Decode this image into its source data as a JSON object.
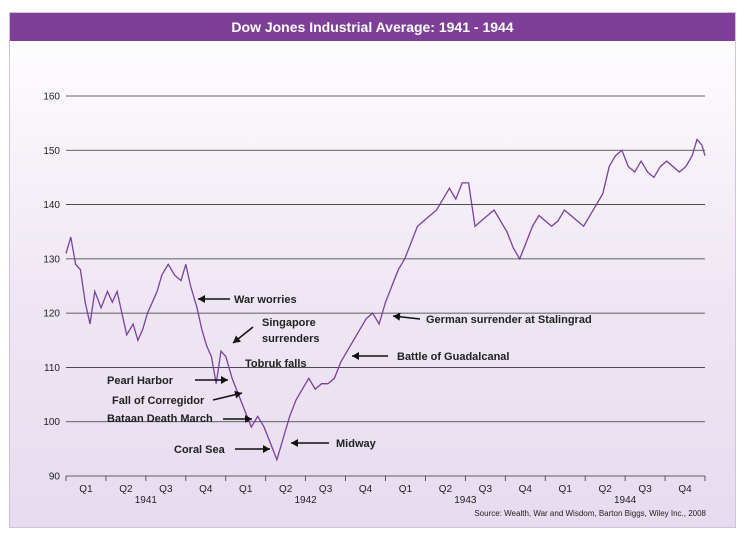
{
  "title": "Dow Jones Industrial Average: 1941 - 1944",
  "source": "Source: Wealth, War and Wisdom, Barton Biggs, Wiley Inc., 2008",
  "colors": {
    "header": "#7f3f98",
    "line": "#7b3f9e",
    "grid": "#333333"
  },
  "chart_data": {
    "type": "line",
    "title": "Dow Jones Industrial Average: 1941 - 1944",
    "xlabel": "",
    "ylabel": "",
    "ylim": [
      90,
      160
    ],
    "yticks": [
      90,
      100,
      110,
      120,
      130,
      140,
      150,
      160
    ],
    "grid": "horizontal",
    "x_quarters": [
      "Q1",
      "Q2",
      "Q3",
      "Q4",
      "Q1",
      "Q2",
      "Q3",
      "Q4",
      "Q1",
      "Q2",
      "Q3",
      "Q4",
      "Q1",
      "Q2",
      "Q3",
      "Q4"
    ],
    "x_years": [
      "1941",
      "1942",
      "1943",
      "1944"
    ],
    "x_range": [
      1941.0,
      1945.0
    ],
    "series": [
      {
        "values": [
          [
            1941.0,
            131
          ],
          [
            1941.03,
            134
          ],
          [
            1941.06,
            129
          ],
          [
            1941.09,
            128
          ],
          [
            1941.12,
            122
          ],
          [
            1941.15,
            118
          ],
          [
            1941.18,
            124
          ],
          [
            1941.22,
            121
          ],
          [
            1941.26,
            124
          ],
          [
            1941.29,
            122
          ],
          [
            1941.32,
            124
          ],
          [
            1941.35,
            120
          ],
          [
            1941.38,
            116
          ],
          [
            1941.42,
            118
          ],
          [
            1941.45,
            115
          ],
          [
            1941.48,
            117
          ],
          [
            1941.51,
            120
          ],
          [
            1941.54,
            122
          ],
          [
            1941.57,
            124
          ],
          [
            1941.6,
            127
          ],
          [
            1941.64,
            129
          ],
          [
            1941.68,
            127
          ],
          [
            1941.72,
            126
          ],
          [
            1941.75,
            129
          ],
          [
            1941.78,
            125
          ],
          [
            1941.82,
            121
          ],
          [
            1941.85,
            117
          ],
          [
            1941.88,
            114
          ],
          [
            1941.91,
            112
          ],
          [
            1941.94,
            107
          ],
          [
            1941.97,
            113
          ],
          [
            1942.0,
            112
          ],
          [
            1942.04,
            108
          ],
          [
            1942.08,
            105
          ],
          [
            1942.12,
            102
          ],
          [
            1942.16,
            99
          ],
          [
            1942.2,
            101
          ],
          [
            1942.24,
            99
          ],
          [
            1942.28,
            96
          ],
          [
            1942.32,
            93
          ],
          [
            1942.36,
            97
          ],
          [
            1942.4,
            101
          ],
          [
            1942.44,
            104
          ],
          [
            1942.48,
            106
          ],
          [
            1942.52,
            108
          ],
          [
            1942.56,
            106
          ],
          [
            1942.6,
            107
          ],
          [
            1942.64,
            107
          ],
          [
            1942.68,
            108
          ],
          [
            1942.72,
            111
          ],
          [
            1942.76,
            113
          ],
          [
            1942.8,
            115
          ],
          [
            1942.84,
            117
          ],
          [
            1942.88,
            119
          ],
          [
            1942.92,
            120
          ],
          [
            1942.96,
            118
          ],
          [
            1943.0,
            122
          ],
          [
            1943.04,
            125
          ],
          [
            1943.08,
            128
          ],
          [
            1943.12,
            130
          ],
          [
            1943.16,
            133
          ],
          [
            1943.2,
            136
          ],
          [
            1943.24,
            137
          ],
          [
            1943.28,
            138
          ],
          [
            1943.32,
            139
          ],
          [
            1943.36,
            141
          ],
          [
            1943.4,
            143
          ],
          [
            1943.44,
            141
          ],
          [
            1943.48,
            144
          ],
          [
            1943.52,
            144
          ],
          [
            1943.56,
            136
          ],
          [
            1943.6,
            137
          ],
          [
            1943.64,
            138
          ],
          [
            1943.68,
            139
          ],
          [
            1943.72,
            137
          ],
          [
            1943.76,
            135
          ],
          [
            1943.8,
            132
          ],
          [
            1943.84,
            130
          ],
          [
            1943.88,
            133
          ],
          [
            1943.92,
            136
          ],
          [
            1943.96,
            138
          ],
          [
            1944.0,
            137
          ],
          [
            1944.04,
            136
          ],
          [
            1944.08,
            137
          ],
          [
            1944.12,
            139
          ],
          [
            1944.16,
            138
          ],
          [
            1944.2,
            137
          ],
          [
            1944.24,
            136
          ],
          [
            1944.28,
            138
          ],
          [
            1944.32,
            140
          ],
          [
            1944.36,
            142
          ],
          [
            1944.4,
            147
          ],
          [
            1944.44,
            149
          ],
          [
            1944.48,
            150
          ],
          [
            1944.52,
            147
          ],
          [
            1944.56,
            146
          ],
          [
            1944.6,
            148
          ],
          [
            1944.64,
            146
          ],
          [
            1944.68,
            145
          ],
          [
            1944.72,
            147
          ],
          [
            1944.76,
            148
          ],
          [
            1944.8,
            147
          ],
          [
            1944.84,
            146
          ],
          [
            1944.88,
            147
          ],
          [
            1944.92,
            149
          ],
          [
            1944.95,
            152
          ],
          [
            1944.98,
            151
          ],
          [
            1945.0,
            149
          ]
        ]
      }
    ],
    "annotations": [
      {
        "text": "War worries",
        "x": 1941.82,
        "y": 122.5
      },
      {
        "text": "Singapore",
        "x": 1942.12,
        "y": 118
      },
      {
        "text": "surrenders",
        "x": 1942.12,
        "y": 118
      },
      {
        "text": "Tobruk falls",
        "x": 1942.45,
        "y": 113
      },
      {
        "text": "Pearl Harbor",
        "x": 1941.93,
        "y": 108
      },
      {
        "text": "Fall of Corregidor",
        "x": 1942.26,
        "y": 105.5
      },
      {
        "text": "Bataan Death March",
        "x": 1942.16,
        "y": 100.5
      },
      {
        "text": "Coral Sea",
        "x": 1942.32,
        "y": 95
      },
      {
        "text": "Midway",
        "x": 1942.4,
        "y": 96
      },
      {
        "text": "Battle of Guadalcanal",
        "x": 1942.94,
        "y": 112
      },
      {
        "text": "German surrender at Stalingrad",
        "x": 1943.08,
        "y": 120
      }
    ]
  }
}
